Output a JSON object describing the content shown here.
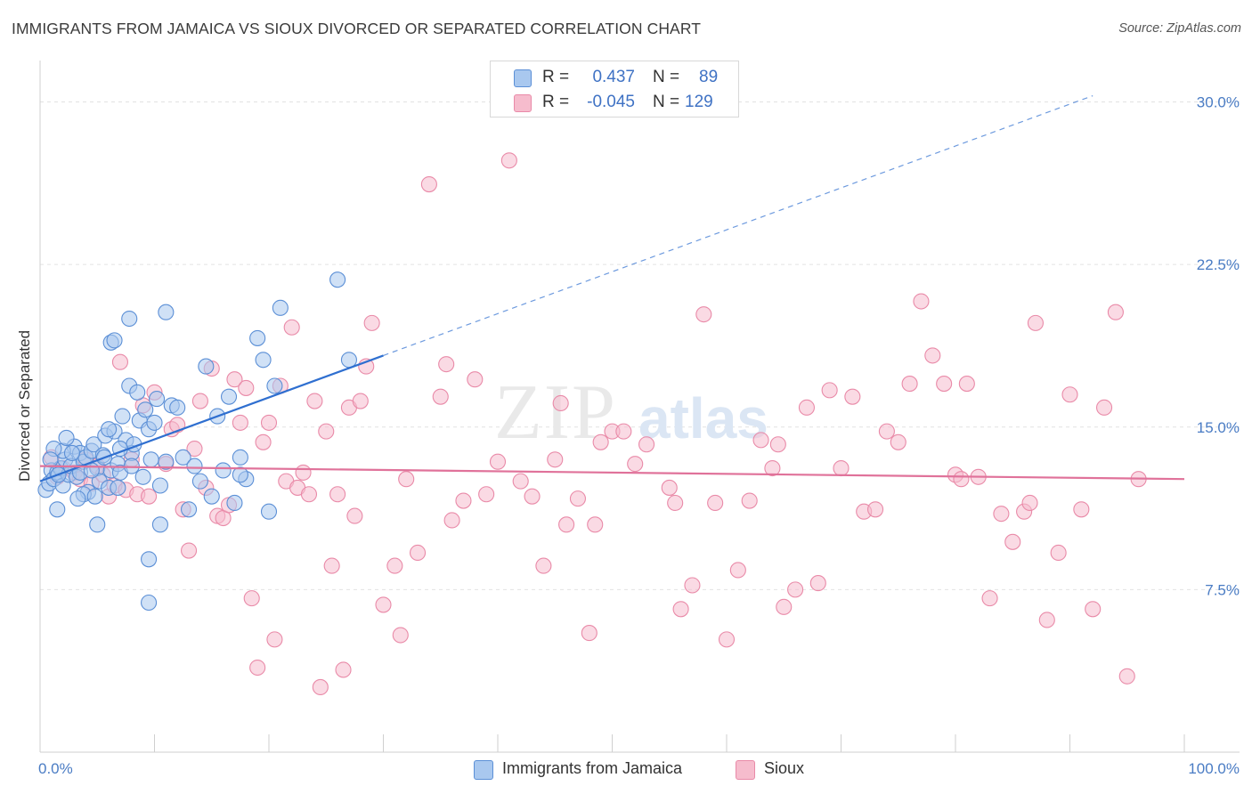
{
  "title": "IMMIGRANTS FROM JAMAICA VS SIOUX DIVORCED OR SEPARATED CORRELATION CHART",
  "source": "Source: ZipAtlas.com",
  "watermark": {
    "zip": "ZIP",
    "atlas": "atlas"
  },
  "colors": {
    "blue_fill": "#a9c8ef",
    "blue_stroke": "#5b8fd6",
    "blue_line": "#2f6fd0",
    "pink_fill": "#f6bccd",
    "pink_stroke": "#e98aa8",
    "pink_line": "#e0729a",
    "tick_text": "#4a7cc4",
    "grid": "#e2e2e2"
  },
  "legend": {
    "rows": [
      {
        "r_label": "R =",
        "r_value": "0.437",
        "n_label": "N =",
        "n_value": "89",
        "color": "#a9c8ef"
      },
      {
        "r_label": "R =",
        "r_value": "-0.045",
        "n_label": "N =",
        "n_value": "129",
        "color": "#f6bccd"
      }
    ]
  },
  "bottom_legend": [
    {
      "label": "Immigrants from Jamaica",
      "color": "#a9c8ef"
    },
    {
      "label": "Sioux",
      "color": "#f6bccd"
    }
  ],
  "chart_data": {
    "type": "scatter",
    "title": "IMMIGRANTS FROM JAMAICA VS SIOUX DIVORCED OR SEPARATED CORRELATION CHART",
    "xlabel": "",
    "ylabel": "Divorced or Separated",
    "xlim": [
      0,
      100
    ],
    "ylim": [
      0,
      31.5
    ],
    "x_tick_labels": [
      "0.0%",
      "100.0%"
    ],
    "y_ticks": [
      7.5,
      15.0,
      22.5,
      30.0
    ],
    "y_tick_labels": [
      "7.5%",
      "15.0%",
      "22.5%",
      "30.0%"
    ],
    "grid": true,
    "legend_position": "top-center",
    "series": [
      {
        "name": "Immigrants from Jamaica",
        "trend": {
          "x0": 0,
          "y0": 12.5,
          "x1": 30,
          "y1": 18.3,
          "dashed_to_x": 92
        },
        "points": [
          [
            0.5,
            12.1
          ],
          [
            0.8,
            12.4
          ],
          [
            1,
            13.0
          ],
          [
            1.2,
            12.6
          ],
          [
            1.5,
            12.9
          ],
          [
            1.8,
            13.1
          ],
          [
            2,
            12.3
          ],
          [
            2.2,
            13.5
          ],
          [
            2.5,
            12.8
          ],
          [
            2.7,
            13.2
          ],
          [
            3,
            14.1
          ],
          [
            3.2,
            12.7
          ],
          [
            3.5,
            13.8
          ],
          [
            3.8,
            13.4
          ],
          [
            4,
            13.6
          ],
          [
            4.2,
            12.0
          ],
          [
            4.5,
            13.9
          ],
          [
            4.7,
            14.2
          ],
          [
            5,
            13.1
          ],
          [
            5.2,
            12.5
          ],
          [
            5.5,
            13.7
          ],
          [
            5.7,
            14.6
          ],
          [
            6,
            12.2
          ],
          [
            6.2,
            13.0
          ],
          [
            6.5,
            14.8
          ],
          [
            6.8,
            13.3
          ],
          [
            7,
            12.9
          ],
          [
            7.2,
            15.5
          ],
          [
            7.5,
            14.4
          ],
          [
            7.8,
            16.9
          ],
          [
            8,
            13.8
          ],
          [
            8.2,
            14.2
          ],
          [
            8.5,
            16.6
          ],
          [
            8.7,
            15.3
          ],
          [
            9,
            12.7
          ],
          [
            9.2,
            15.8
          ],
          [
            9.5,
            14.9
          ],
          [
            9.7,
            13.5
          ],
          [
            10,
            15.2
          ],
          [
            10.2,
            16.3
          ],
          [
            10.5,
            12.3
          ],
          [
            11,
            13.4
          ],
          [
            11.5,
            16.0
          ],
          [
            12,
            15.9
          ],
          [
            12.5,
            13.6
          ],
          [
            13,
            11.2
          ],
          [
            13.5,
            13.2
          ],
          [
            14,
            12.5
          ],
          [
            14.5,
            17.8
          ],
          [
            15,
            11.8
          ],
          [
            15.5,
            15.5
          ],
          [
            16,
            13.0
          ],
          [
            16.5,
            16.4
          ],
          [
            17,
            11.5
          ],
          [
            17.5,
            13.6
          ],
          [
            18,
            12.6
          ],
          [
            19,
            19.1
          ],
          [
            19.5,
            18.1
          ],
          [
            20,
            11.1
          ],
          [
            20.5,
            16.9
          ],
          [
            21,
            20.5
          ],
          [
            7.8,
            20.0
          ],
          [
            11,
            20.3
          ],
          [
            6.2,
            18.9
          ],
          [
            6.5,
            19.0
          ],
          [
            26,
            21.8
          ],
          [
            27,
            18.1
          ],
          [
            1.5,
            11.2
          ],
          [
            3.8,
            11.9
          ],
          [
            5,
            10.5
          ],
          [
            9.5,
            8.9
          ],
          [
            10.5,
            10.5
          ],
          [
            9.5,
            6.9
          ],
          [
            2,
            13.9
          ],
          [
            3.5,
            12.9
          ],
          [
            4.8,
            11.8
          ],
          [
            6,
            14.9
          ],
          [
            7,
            14.0
          ],
          [
            8,
            13.2
          ],
          [
            2.8,
            13.8
          ],
          [
            1.2,
            14.0
          ],
          [
            2.3,
            14.5
          ],
          [
            3.3,
            11.7
          ],
          [
            6.8,
            12.2
          ],
          [
            4.5,
            13.0
          ],
          [
            5.6,
            13.6
          ],
          [
            0.9,
            13.5
          ],
          [
            1.6,
            12.8
          ],
          [
            17.5,
            12.8
          ]
        ]
      },
      {
        "name": "Sioux",
        "trend": {
          "x0": 0,
          "y0": 13.2,
          "x1": 100,
          "y1": 12.6
        },
        "points": [
          [
            1,
            13.6
          ],
          [
            1.5,
            12.7
          ],
          [
            2,
            13.1
          ],
          [
            3,
            12.9
          ],
          [
            3.5,
            12.6
          ],
          [
            4,
            13.5
          ],
          [
            4.5,
            12.4
          ],
          [
            5,
            13.2
          ],
          [
            5.5,
            12.8
          ],
          [
            6,
            11.8
          ],
          [
            6.5,
            12.3
          ],
          [
            7,
            18.0
          ],
          [
            7.5,
            12.1
          ],
          [
            8,
            13.5
          ],
          [
            8.5,
            11.9
          ],
          [
            9,
            16.0
          ],
          [
            9.5,
            11.8
          ],
          [
            10,
            16.6
          ],
          [
            11,
            13.3
          ],
          [
            11.5,
            14.9
          ],
          [
            12,
            15.1
          ],
          [
            12.5,
            11.2
          ],
          [
            13,
            9.3
          ],
          [
            13.5,
            14.0
          ],
          [
            14,
            16.2
          ],
          [
            14.5,
            12.2
          ],
          [
            15,
            17.7
          ],
          [
            15.5,
            10.9
          ],
          [
            16,
            10.8
          ],
          [
            16.5,
            11.4
          ],
          [
            17,
            17.2
          ],
          [
            17.5,
            15.2
          ],
          [
            18,
            16.8
          ],
          [
            18.5,
            7.1
          ],
          [
            19,
            3.9
          ],
          [
            19.5,
            14.3
          ],
          [
            20,
            15.2
          ],
          [
            20.5,
            5.2
          ],
          [
            21,
            16.9
          ],
          [
            21.5,
            12.5
          ],
          [
            22,
            19.6
          ],
          [
            22.5,
            12.2
          ],
          [
            23,
            12.9
          ],
          [
            23.5,
            11.9
          ],
          [
            24,
            16.2
          ],
          [
            24.5,
            3.0
          ],
          [
            25,
            14.8
          ],
          [
            25.5,
            8.6
          ],
          [
            26,
            11.9
          ],
          [
            26.5,
            3.8
          ],
          [
            27,
            15.9
          ],
          [
            27.5,
            10.9
          ],
          [
            28,
            16.2
          ],
          [
            28.5,
            17.8
          ],
          [
            29,
            19.8
          ],
          [
            30,
            6.8
          ],
          [
            31,
            8.6
          ],
          [
            31.5,
            5.4
          ],
          [
            32,
            12.6
          ],
          [
            33,
            9.2
          ],
          [
            34,
            26.2
          ],
          [
            35,
            16.4
          ],
          [
            35.5,
            17.9
          ],
          [
            36,
            10.7
          ],
          [
            37,
            11.6
          ],
          [
            38,
            17.2
          ],
          [
            39,
            11.9
          ],
          [
            40,
            13.4
          ],
          [
            41,
            27.3
          ],
          [
            42,
            12.5
          ],
          [
            43,
            11.8
          ],
          [
            44,
            8.6
          ],
          [
            45,
            13.5
          ],
          [
            45.5,
            16.1
          ],
          [
            46,
            10.5
          ],
          [
            47,
            11.7
          ],
          [
            48,
            5.5
          ],
          [
            49,
            14.3
          ],
          [
            50,
            14.8
          ],
          [
            51,
            14.8
          ],
          [
            52,
            13.3
          ],
          [
            53,
            14.2
          ],
          [
            55,
            12.2
          ],
          [
            56,
            6.6
          ],
          [
            57,
            7.7
          ],
          [
            58,
            20.2
          ],
          [
            59,
            11.5
          ],
          [
            60,
            5.2
          ],
          [
            61,
            8.4
          ],
          [
            62,
            11.6
          ],
          [
            63,
            14.4
          ],
          [
            64,
            13.1
          ],
          [
            64.5,
            14.2
          ],
          [
            65,
            6.7
          ],
          [
            66,
            7.5
          ],
          [
            67,
            15.9
          ],
          [
            68,
            7.8
          ],
          [
            69,
            16.7
          ],
          [
            70,
            13.1
          ],
          [
            71,
            16.4
          ],
          [
            72,
            11.1
          ],
          [
            73,
            11.2
          ],
          [
            74,
            14.8
          ],
          [
            75,
            14.3
          ],
          [
            76,
            17.0
          ],
          [
            77,
            20.8
          ],
          [
            78,
            18.3
          ],
          [
            79,
            17.0
          ],
          [
            80,
            12.8
          ],
          [
            81,
            17.0
          ],
          [
            82,
            12.7
          ],
          [
            83,
            7.1
          ],
          [
            84,
            11.0
          ],
          [
            85,
            9.7
          ],
          [
            86,
            11.1
          ],
          [
            87,
            19.8
          ],
          [
            88,
            6.1
          ],
          [
            89,
            9.2
          ],
          [
            90,
            16.5
          ],
          [
            91,
            11.2
          ],
          [
            92,
            6.6
          ],
          [
            93,
            15.9
          ],
          [
            94,
            20.3
          ],
          [
            95,
            3.5
          ],
          [
            96,
            12.6
          ],
          [
            80.5,
            12.6
          ],
          [
            86.5,
            11.5
          ],
          [
            55.5,
            11.5
          ],
          [
            48.5,
            10.5
          ]
        ]
      }
    ]
  }
}
